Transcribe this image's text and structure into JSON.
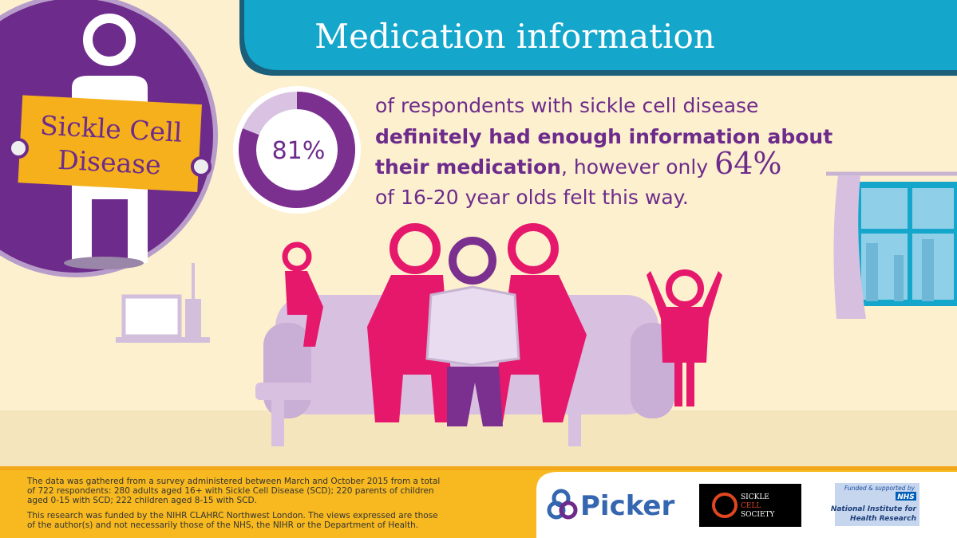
{
  "header": {
    "title": "Medication information"
  },
  "badge": {
    "lines": [
      "Sickle Cell",
      "Disease"
    ]
  },
  "stat": {
    "value": 81,
    "label": "81%"
  },
  "statement": {
    "line1": "of respondents with sickle cell disease",
    "line2": "definitely had enough information about",
    "line3_bold": "their medication",
    "line3_text": ", however only ",
    "line3_value": "64%",
    "line4": "of 16-20 year olds felt this way."
  },
  "footer": {
    "notes": [
      "The data was gathered from a survey administered between March and October 2015 from a total",
      "of 722 respondents: 280 adults aged 16+ with Sickle Cell Disease (SCD); 220 parents of children",
      "aged 0-15 with SCD; 222 children aged 8-15 with SCD.",
      "This research was funded by the NIHR CLAHRC Northwest London. The views expressed are those",
      "of the author(s) and not necessarily those of the NHS, the NIHR or the Department of Health."
    ]
  },
  "logos": {
    "picker": "Picker",
    "society": [
      "SICKLE",
      "CELL",
      "SOCIETY"
    ],
    "nhs": {
      "funded": "Funded & supported by",
      "badge": "NHS",
      "lines": [
        "National Institute for",
        "Health Research"
      ]
    }
  }
}
